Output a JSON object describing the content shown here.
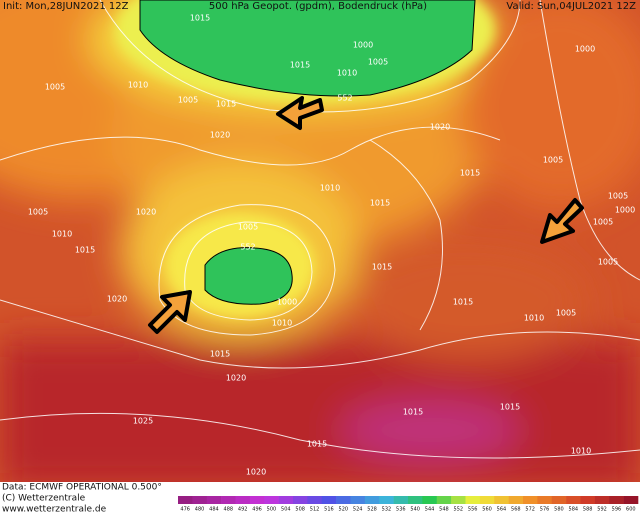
{
  "header": {
    "init": "Init: Mon,28JUN2021 12Z",
    "title": "500 hPa Geopot. (gpdm), Bodendruck (hPa)",
    "valid": "Valid: Sun,04JUL2021 12Z"
  },
  "map": {
    "isobar_labels": [
      "1015",
      "1000",
      "1005",
      "1015",
      "1010",
      "1010",
      "1005",
      "1015",
      "552",
      "1005",
      "1020",
      "1020",
      "1000",
      "1005",
      "1015",
      "1010",
      "1015",
      "1020",
      "1005",
      "1010",
      "1015",
      "1005",
      "552",
      "1005",
      "1000",
      "1005",
      "1005",
      "1015",
      "1015",
      "1020",
      "1000",
      "1010",
      "1010",
      "1005",
      "1015",
      "1020",
      "1025",
      "1015",
      "1015",
      "1015",
      "1010",
      "1020"
    ]
  },
  "footer": {
    "data": "Data: ECMWF OPERATIONAL 0.500°",
    "copyright": "(C) Wetterzentrale",
    "url": "www.wetterzentrale.de"
  },
  "legend": {
    "values": [
      476,
      480,
      484,
      488,
      492,
      496,
      500,
      504,
      508,
      512,
      516,
      520,
      524,
      528,
      532,
      536,
      540,
      544,
      548,
      552,
      556,
      560,
      564,
      568,
      572,
      576,
      580,
      584,
      588,
      592,
      596,
      600
    ]
  }
}
